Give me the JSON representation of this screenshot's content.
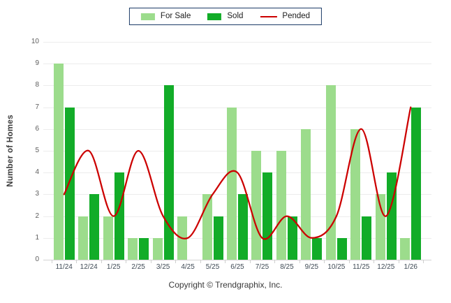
{
  "legend": {
    "items": [
      {
        "label": "For Sale",
        "color": "#9CDC8C",
        "swatch": "rect"
      },
      {
        "label": "Sold",
        "color": "#12AC28",
        "swatch": "rect"
      },
      {
        "label": "Pended",
        "color": "#CC0000",
        "swatch": "line"
      }
    ]
  },
  "chart_data": {
    "type": "bar",
    "categories": [
      "11/24",
      "12/24",
      "1/25",
      "2/25",
      "3/25",
      "4/25",
      "5/25",
      "6/25",
      "7/25",
      "8/25",
      "9/25",
      "10/25",
      "11/25",
      "12/25",
      "1/26"
    ],
    "series": [
      {
        "name": "For Sale",
        "type": "bar",
        "color": "#9CDC8C",
        "values": [
          9,
          2,
          2,
          1,
          1,
          2,
          3,
          7,
          5,
          5,
          6,
          8,
          6,
          3,
          1
        ]
      },
      {
        "name": "Sold",
        "type": "bar",
        "color": "#12AC28",
        "values": [
          7,
          3,
          4,
          1,
          8,
          0,
          2,
          3,
          4,
          2,
          1,
          1,
          2,
          4,
          7
        ]
      },
      {
        "name": "Pended",
        "type": "line",
        "color": "#CC0000",
        "values": [
          3,
          5,
          2,
          5,
          2,
          1,
          3,
          4,
          1,
          2,
          1,
          2,
          6,
          2,
          7
        ]
      }
    ],
    "ylabel": "Number of Homes",
    "ylim": [
      0,
      10
    ],
    "ytick_step": 1,
    "grid": true,
    "legend_position": "top-center",
    "line_smoothing": "spline"
  },
  "footer": {
    "copyright": "Copyright © Trendgraphix, Inc."
  }
}
